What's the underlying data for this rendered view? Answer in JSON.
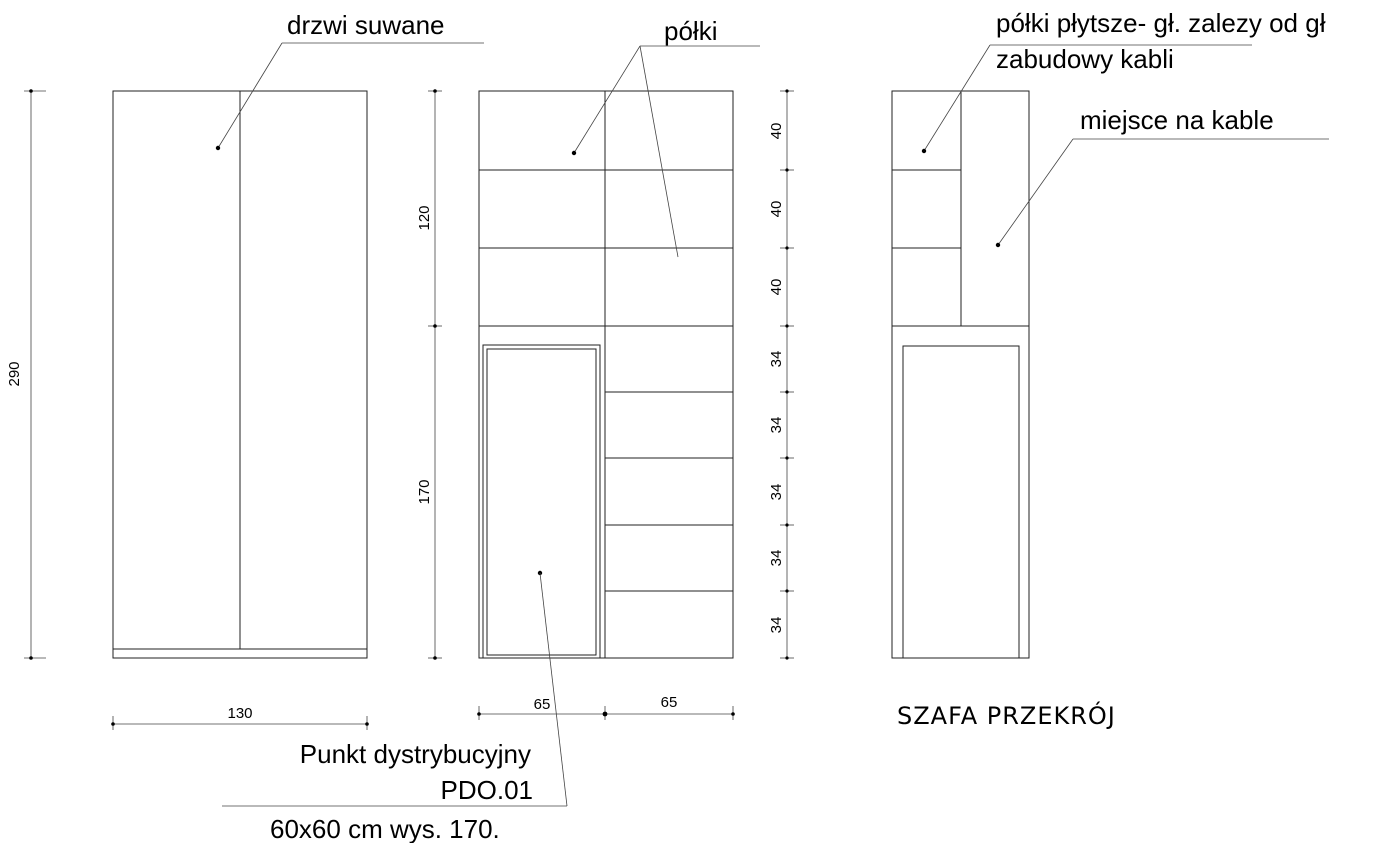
{
  "labels": {
    "sliding_doors": "drzwi suwane",
    "shelves": "półki",
    "shallow_shelves_line1": "półki płytsze- gł. zalezy od gł",
    "shallow_shelves_line2": "zabudowy  kabli",
    "cable_space": "miejsce na kable",
    "dist_point_line1": "Punkt  dystrybucyjny",
    "dist_point_line2": "PDO.01",
    "dist_point_line3": "60x60 cm wys. 170.",
    "section_title": "SZAFA PRZEKRÓJ"
  },
  "dimensions": {
    "total_height": "290",
    "front_width": "130",
    "upper_height": "120",
    "lower_height": "170",
    "left_width": "65",
    "right_width": "65",
    "upper_shelves": [
      "40",
      "40",
      "40"
    ],
    "lower_shelves": [
      "34",
      "34",
      "34",
      "34",
      "34"
    ]
  },
  "colors": {
    "door_fill": "#EDD497",
    "equipment_fill": "#C8C8C8"
  }
}
